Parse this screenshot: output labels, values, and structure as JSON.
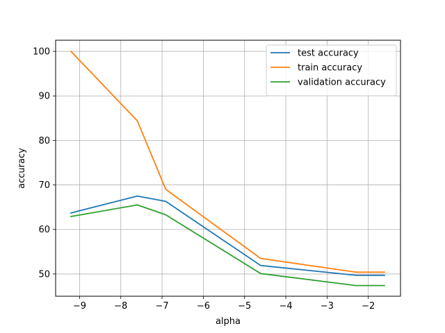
{
  "chart_data": {
    "type": "line",
    "title": "",
    "xlabel": "alpha",
    "ylabel": "accuracy",
    "xlim": [
      -9.58,
      -1.22
    ],
    "ylim": [
      45.0,
      102.5
    ],
    "xticks": [
      -9,
      -8,
      -7,
      -6,
      -5,
      -4,
      -3,
      -2
    ],
    "xtick_labels": [
      "−9",
      "−8",
      "−7",
      "−6",
      "−5",
      "−4",
      "−3",
      "−2"
    ],
    "yticks": [
      50,
      60,
      70,
      80,
      90,
      100
    ],
    "ytick_labels": [
      "50",
      "60",
      "70",
      "80",
      "90",
      "100"
    ],
    "grid": true,
    "legend_position": "top-right",
    "x": [
      -9.21,
      -7.6,
      -6.91,
      -4.61,
      -2.3,
      -1.61
    ],
    "series": [
      {
        "name": "test accuracy",
        "color": "#1f77b4",
        "values": [
          63.7,
          67.5,
          66.3,
          51.9,
          49.7,
          49.7
        ]
      },
      {
        "name": "train accuracy",
        "color": "#ff7f0e",
        "values": [
          100.0,
          84.4,
          69.0,
          53.5,
          50.4,
          50.4
        ]
      },
      {
        "name": "validation accuracy",
        "color": "#2ca02c",
        "values": [
          62.9,
          65.5,
          63.3,
          50.1,
          47.4,
          47.4
        ]
      }
    ]
  }
}
